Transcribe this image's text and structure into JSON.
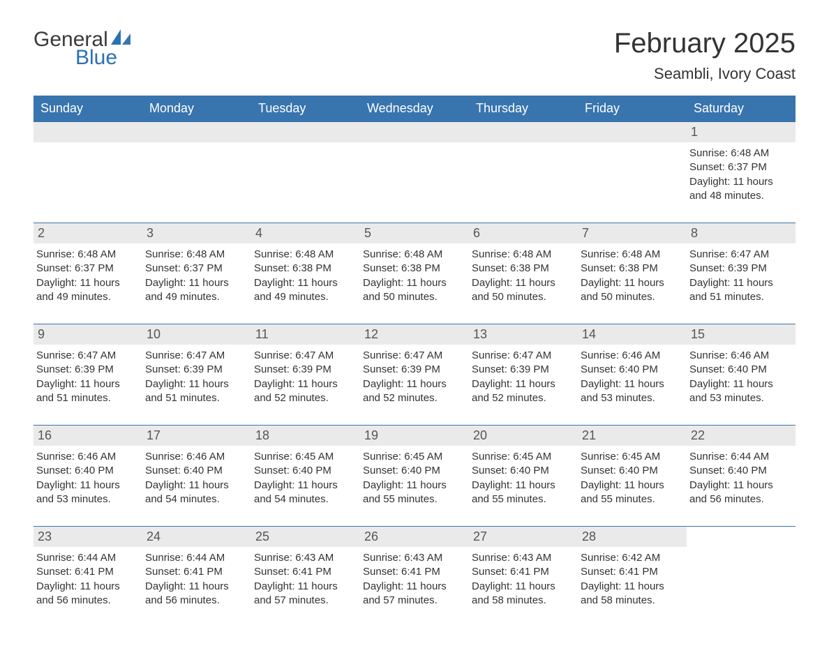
{
  "logo": {
    "general": "General",
    "blue": "Blue",
    "sail_color": "#2b6fb5"
  },
  "title": "February 2025",
  "location": "Seambli, Ivory Coast",
  "colors": {
    "header_bg": "#3874ae",
    "header_text": "#ffffff",
    "row_border": "#3874ae",
    "daynum_bg": "#eaeaea",
    "text": "#333333",
    "logo_blue": "#2b6fb5",
    "logo_gray": "#3a3a3a",
    "page_bg": "#ffffff"
  },
  "day_labels": [
    "Sunday",
    "Monday",
    "Tuesday",
    "Wednesday",
    "Thursday",
    "Friday",
    "Saturday"
  ],
  "weeks": [
    [
      null,
      null,
      null,
      null,
      null,
      null,
      {
        "n": "1",
        "sunrise": "Sunrise: 6:48 AM",
        "sunset": "Sunset: 6:37 PM",
        "dl1": "Daylight: 11 hours",
        "dl2": "and 48 minutes."
      }
    ],
    [
      {
        "n": "2",
        "sunrise": "Sunrise: 6:48 AM",
        "sunset": "Sunset: 6:37 PM",
        "dl1": "Daylight: 11 hours",
        "dl2": "and 49 minutes."
      },
      {
        "n": "3",
        "sunrise": "Sunrise: 6:48 AM",
        "sunset": "Sunset: 6:37 PM",
        "dl1": "Daylight: 11 hours",
        "dl2": "and 49 minutes."
      },
      {
        "n": "4",
        "sunrise": "Sunrise: 6:48 AM",
        "sunset": "Sunset: 6:38 PM",
        "dl1": "Daylight: 11 hours",
        "dl2": "and 49 minutes."
      },
      {
        "n": "5",
        "sunrise": "Sunrise: 6:48 AM",
        "sunset": "Sunset: 6:38 PM",
        "dl1": "Daylight: 11 hours",
        "dl2": "and 50 minutes."
      },
      {
        "n": "6",
        "sunrise": "Sunrise: 6:48 AM",
        "sunset": "Sunset: 6:38 PM",
        "dl1": "Daylight: 11 hours",
        "dl2": "and 50 minutes."
      },
      {
        "n": "7",
        "sunrise": "Sunrise: 6:48 AM",
        "sunset": "Sunset: 6:38 PM",
        "dl1": "Daylight: 11 hours",
        "dl2": "and 50 minutes."
      },
      {
        "n": "8",
        "sunrise": "Sunrise: 6:47 AM",
        "sunset": "Sunset: 6:39 PM",
        "dl1": "Daylight: 11 hours",
        "dl2": "and 51 minutes."
      }
    ],
    [
      {
        "n": "9",
        "sunrise": "Sunrise: 6:47 AM",
        "sunset": "Sunset: 6:39 PM",
        "dl1": "Daylight: 11 hours",
        "dl2": "and 51 minutes."
      },
      {
        "n": "10",
        "sunrise": "Sunrise: 6:47 AM",
        "sunset": "Sunset: 6:39 PM",
        "dl1": "Daylight: 11 hours",
        "dl2": "and 51 minutes."
      },
      {
        "n": "11",
        "sunrise": "Sunrise: 6:47 AM",
        "sunset": "Sunset: 6:39 PM",
        "dl1": "Daylight: 11 hours",
        "dl2": "and 52 minutes."
      },
      {
        "n": "12",
        "sunrise": "Sunrise: 6:47 AM",
        "sunset": "Sunset: 6:39 PM",
        "dl1": "Daylight: 11 hours",
        "dl2": "and 52 minutes."
      },
      {
        "n": "13",
        "sunrise": "Sunrise: 6:47 AM",
        "sunset": "Sunset: 6:39 PM",
        "dl1": "Daylight: 11 hours",
        "dl2": "and 52 minutes."
      },
      {
        "n": "14",
        "sunrise": "Sunrise: 6:46 AM",
        "sunset": "Sunset: 6:40 PM",
        "dl1": "Daylight: 11 hours",
        "dl2": "and 53 minutes."
      },
      {
        "n": "15",
        "sunrise": "Sunrise: 6:46 AM",
        "sunset": "Sunset: 6:40 PM",
        "dl1": "Daylight: 11 hours",
        "dl2": "and 53 minutes."
      }
    ],
    [
      {
        "n": "16",
        "sunrise": "Sunrise: 6:46 AM",
        "sunset": "Sunset: 6:40 PM",
        "dl1": "Daylight: 11 hours",
        "dl2": "and 53 minutes."
      },
      {
        "n": "17",
        "sunrise": "Sunrise: 6:46 AM",
        "sunset": "Sunset: 6:40 PM",
        "dl1": "Daylight: 11 hours",
        "dl2": "and 54 minutes."
      },
      {
        "n": "18",
        "sunrise": "Sunrise: 6:45 AM",
        "sunset": "Sunset: 6:40 PM",
        "dl1": "Daylight: 11 hours",
        "dl2": "and 54 minutes."
      },
      {
        "n": "19",
        "sunrise": "Sunrise: 6:45 AM",
        "sunset": "Sunset: 6:40 PM",
        "dl1": "Daylight: 11 hours",
        "dl2": "and 55 minutes."
      },
      {
        "n": "20",
        "sunrise": "Sunrise: 6:45 AM",
        "sunset": "Sunset: 6:40 PM",
        "dl1": "Daylight: 11 hours",
        "dl2": "and 55 minutes."
      },
      {
        "n": "21",
        "sunrise": "Sunrise: 6:45 AM",
        "sunset": "Sunset: 6:40 PM",
        "dl1": "Daylight: 11 hours",
        "dl2": "and 55 minutes."
      },
      {
        "n": "22",
        "sunrise": "Sunrise: 6:44 AM",
        "sunset": "Sunset: 6:40 PM",
        "dl1": "Daylight: 11 hours",
        "dl2": "and 56 minutes."
      }
    ],
    [
      {
        "n": "23",
        "sunrise": "Sunrise: 6:44 AM",
        "sunset": "Sunset: 6:41 PM",
        "dl1": "Daylight: 11 hours",
        "dl2": "and 56 minutes."
      },
      {
        "n": "24",
        "sunrise": "Sunrise: 6:44 AM",
        "sunset": "Sunset: 6:41 PM",
        "dl1": "Daylight: 11 hours",
        "dl2": "and 56 minutes."
      },
      {
        "n": "25",
        "sunrise": "Sunrise: 6:43 AM",
        "sunset": "Sunset: 6:41 PM",
        "dl1": "Daylight: 11 hours",
        "dl2": "and 57 minutes."
      },
      {
        "n": "26",
        "sunrise": "Sunrise: 6:43 AM",
        "sunset": "Sunset: 6:41 PM",
        "dl1": "Daylight: 11 hours",
        "dl2": "and 57 minutes."
      },
      {
        "n": "27",
        "sunrise": "Sunrise: 6:43 AM",
        "sunset": "Sunset: 6:41 PM",
        "dl1": "Daylight: 11 hours",
        "dl2": "and 58 minutes."
      },
      {
        "n": "28",
        "sunrise": "Sunrise: 6:42 AM",
        "sunset": "Sunset: 6:41 PM",
        "dl1": "Daylight: 11 hours",
        "dl2": "and 58 minutes."
      },
      null
    ]
  ]
}
